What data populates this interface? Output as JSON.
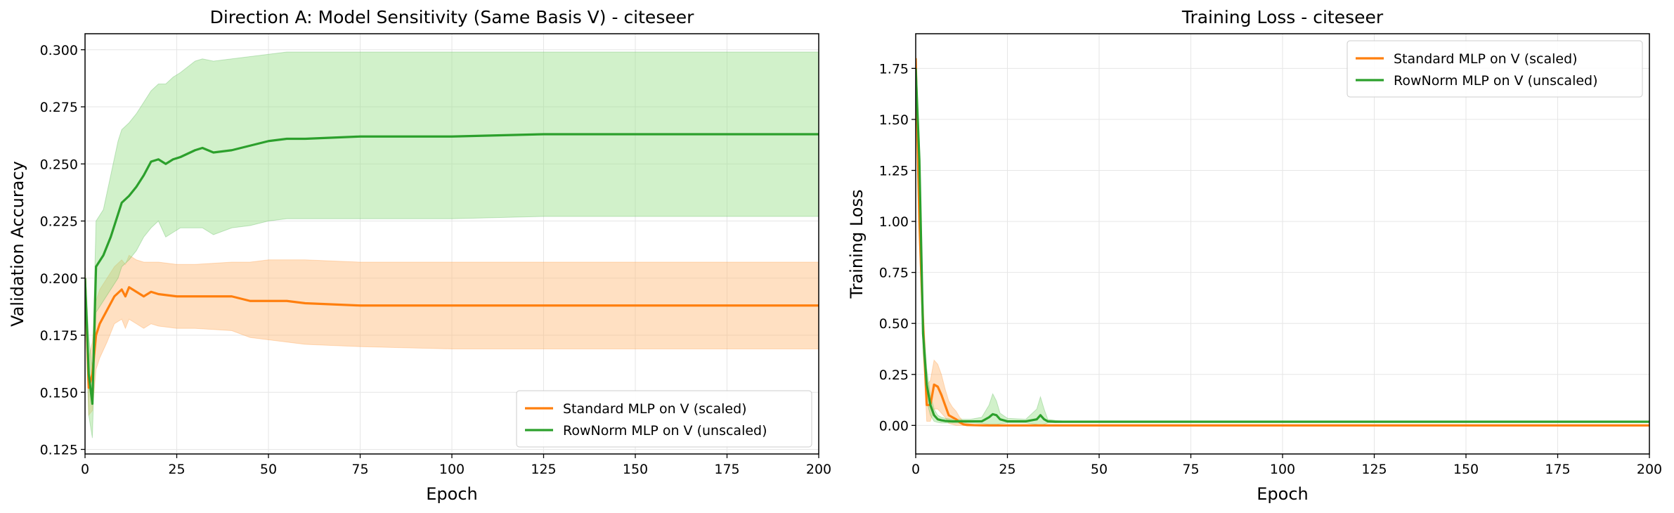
{
  "chart_data": [
    {
      "type": "line",
      "title": "Direction A: Model Sensitivity (Same Basis V) - citeseer",
      "xlabel": "Epoch",
      "ylabel": "Validation Accuracy",
      "xlim": [
        0,
        200
      ],
      "ylim": [
        0.123,
        0.307
      ],
      "xticks": [
        0,
        25,
        50,
        75,
        100,
        125,
        150,
        175,
        200
      ],
      "yticks": [
        0.125,
        0.15,
        0.175,
        0.2,
        0.225,
        0.25,
        0.275,
        0.3
      ],
      "ytick_labels": [
        "0.125",
        "0.150",
        "0.175",
        "0.200",
        "0.225",
        "0.250",
        "0.275",
        "0.300"
      ],
      "grid": true,
      "legend_position": "lower-right",
      "series": [
        {
          "name": "Standard MLP on V (scaled)",
          "color": "#ff7f0e",
          "fill_color": "#ffbb78",
          "x": [
            0,
            1,
            2,
            3,
            4,
            6,
            8,
            10,
            11,
            12,
            14,
            16,
            18,
            20,
            25,
            30,
            40,
            45,
            50,
            55,
            60,
            75,
            100,
            200
          ],
          "values": [
            0.2,
            0.152,
            0.158,
            0.175,
            0.18,
            0.186,
            0.192,
            0.195,
            0.192,
            0.196,
            0.194,
            0.192,
            0.194,
            0.193,
            0.192,
            0.192,
            0.192,
            0.19,
            0.19,
            0.19,
            0.189,
            0.188,
            0.188,
            0.188
          ],
          "upper": [
            0.205,
            0.165,
            0.172,
            0.19,
            0.195,
            0.2,
            0.205,
            0.208,
            0.206,
            0.21,
            0.208,
            0.207,
            0.207,
            0.207,
            0.206,
            0.206,
            0.207,
            0.207,
            0.208,
            0.208,
            0.208,
            0.207,
            0.207,
            0.207
          ],
          "lower": [
            0.195,
            0.14,
            0.142,
            0.16,
            0.165,
            0.172,
            0.18,
            0.182,
            0.178,
            0.182,
            0.18,
            0.178,
            0.18,
            0.179,
            0.178,
            0.178,
            0.177,
            0.174,
            0.173,
            0.172,
            0.171,
            0.17,
            0.169,
            0.169
          ]
        },
        {
          "name": "RowNorm MLP on V (unscaled)",
          "color": "#2ca02c",
          "fill_color": "#98df8a",
          "x": [
            0,
            1,
            2,
            3,
            5,
            7,
            9,
            10,
            12,
            14,
            16,
            18,
            20,
            22,
            24,
            26,
            30,
            32,
            35,
            40,
            45,
            50,
            55,
            60,
            75,
            85,
            100,
            125,
            200
          ],
          "values": [
            0.2,
            0.158,
            0.145,
            0.205,
            0.21,
            0.218,
            0.228,
            0.233,
            0.236,
            0.24,
            0.245,
            0.251,
            0.252,
            0.25,
            0.252,
            0.253,
            0.256,
            0.257,
            0.255,
            0.256,
            0.258,
            0.26,
            0.261,
            0.261,
            0.262,
            0.262,
            0.262,
            0.263,
            0.263
          ],
          "upper": [
            0.205,
            0.175,
            0.16,
            0.225,
            0.23,
            0.245,
            0.26,
            0.265,
            0.268,
            0.272,
            0.277,
            0.282,
            0.285,
            0.285,
            0.288,
            0.29,
            0.295,
            0.296,
            0.295,
            0.296,
            0.297,
            0.298,
            0.299,
            0.299,
            0.299,
            0.299,
            0.299,
            0.299,
            0.299
          ],
          "lower": [
            0.195,
            0.14,
            0.13,
            0.185,
            0.19,
            0.195,
            0.2,
            0.205,
            0.208,
            0.212,
            0.218,
            0.222,
            0.225,
            0.218,
            0.22,
            0.222,
            0.222,
            0.222,
            0.219,
            0.222,
            0.223,
            0.225,
            0.226,
            0.226,
            0.226,
            0.226,
            0.226,
            0.227,
            0.227
          ]
        }
      ]
    },
    {
      "type": "line",
      "title": "Training Loss - citeseer",
      "xlabel": "Epoch",
      "ylabel": "Training Loss",
      "xlim": [
        0,
        200
      ],
      "ylim": [
        -0.14,
        1.92
      ],
      "xticks": [
        0,
        25,
        50,
        75,
        100,
        125,
        150,
        175,
        200
      ],
      "yticks": [
        0,
        0.25,
        0.5,
        0.75,
        1,
        1.25,
        1.5,
        1.75
      ],
      "ytick_labels": [
        "0.00",
        "0.25",
        "0.50",
        "0.75",
        "1.00",
        "1.25",
        "1.50",
        "1.75"
      ],
      "grid": true,
      "legend_position": "top-right",
      "series": [
        {
          "name": "Standard MLP on V (scaled)",
          "color": "#ff7f0e",
          "fill_color": "#ffbb78",
          "x": [
            0,
            1,
            2,
            3,
            4,
            5,
            6,
            7,
            8,
            9,
            10,
            11,
            12,
            13,
            14,
            16,
            20,
            200
          ],
          "values": [
            1.8,
            1.0,
            0.5,
            0.1,
            0.1,
            0.2,
            0.19,
            0.15,
            0.1,
            0.05,
            0.04,
            0.03,
            0.015,
            0.005,
            0.002,
            0.001,
            0.0,
            0.0
          ],
          "upper": [
            1.82,
            1.1,
            0.62,
            0.2,
            0.22,
            0.32,
            0.3,
            0.25,
            0.18,
            0.12,
            0.09,
            0.07,
            0.04,
            0.02,
            0.01,
            0.005,
            0.002,
            0.002
          ],
          "lower": [
            1.78,
            0.9,
            0.38,
            0.02,
            0.02,
            0.08,
            0.08,
            0.06,
            0.04,
            0.01,
            0.005,
            0.0,
            0.0,
            0.0,
            0.0,
            0.0,
            0.0,
            0.0
          ]
        },
        {
          "name": "RowNorm MLP on V (unscaled)",
          "color": "#2ca02c",
          "fill_color": "#98df8a",
          "x": [
            0,
            1,
            2,
            3,
            4,
            5,
            6,
            7,
            8,
            10,
            12,
            15,
            18,
            20,
            21,
            22,
            23,
            25,
            30,
            33,
            34,
            35,
            36,
            38,
            40,
            200
          ],
          "values": [
            1.75,
            1.3,
            0.45,
            0.2,
            0.1,
            0.05,
            0.03,
            0.025,
            0.022,
            0.02,
            0.02,
            0.02,
            0.02,
            0.04,
            0.055,
            0.05,
            0.03,
            0.02,
            0.02,
            0.03,
            0.05,
            0.03,
            0.02,
            0.018,
            0.018,
            0.018
          ],
          "upper": [
            1.78,
            1.4,
            0.55,
            0.28,
            0.15,
            0.08,
            0.05,
            0.04,
            0.035,
            0.03,
            0.03,
            0.03,
            0.04,
            0.1,
            0.155,
            0.12,
            0.06,
            0.035,
            0.03,
            0.08,
            0.14,
            0.08,
            0.03,
            0.025,
            0.022,
            0.022
          ],
          "lower": [
            1.72,
            1.2,
            0.35,
            0.12,
            0.05,
            0.02,
            0.015,
            0.012,
            0.012,
            0.012,
            0.012,
            0.012,
            0.01,
            0.005,
            0.005,
            0.005,
            0.008,
            0.012,
            0.012,
            0.005,
            0.0,
            0.005,
            0.012,
            0.014,
            0.015,
            0.015
          ]
        }
      ]
    }
  ]
}
